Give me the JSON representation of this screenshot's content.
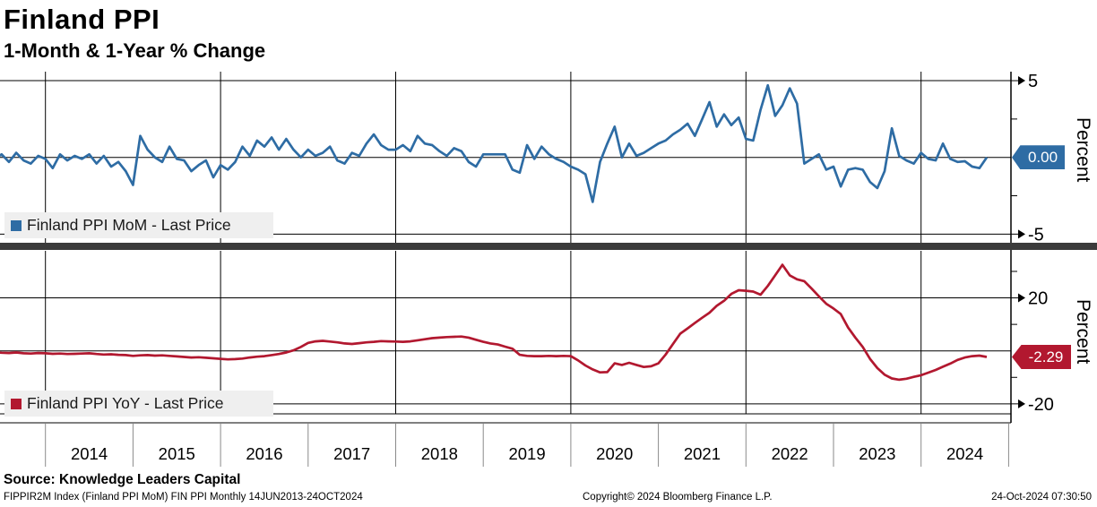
{
  "header": {
    "title": "Finland PPI",
    "subtitle": "1-Month & 1-Year % Change"
  },
  "xaxis": {
    "years": [
      "2014",
      "2015",
      "2016",
      "2017",
      "2018",
      "2019",
      "2020",
      "2021",
      "2022",
      "2023",
      "2024"
    ]
  },
  "chart_data": [
    {
      "type": "line",
      "name": "Finland PPI MoM - Last Price",
      "unit": "Percent",
      "color": "#2e6ca4",
      "last_price": "0.00",
      "last_price_value": 0.0,
      "freq": "monthly",
      "x_start": "2013-06",
      "x_end": "2024-10",
      "ylim": [
        -5.6,
        5.6
      ],
      "gridlines": [
        5,
        0,
        -5
      ],
      "major_ticks": [
        5,
        -5
      ],
      "minor_ticks": [
        2.5,
        -2.5
      ],
      "values": [
        -0.1,
        0.2,
        -0.3,
        0.3,
        -0.2,
        -0.4,
        0.1,
        -0.1,
        -0.7,
        0.2,
        -0.2,
        0.1,
        -0.1,
        0.2,
        -0.4,
        0.1,
        -0.6,
        -0.3,
        -0.9,
        -1.8,
        1.4,
        0.5,
        0,
        -0.3,
        0.7,
        -0.1,
        -0.2,
        -0.9,
        -0.5,
        -0.2,
        -1.3,
        -0.5,
        -0.8,
        -0.3,
        0.7,
        0.1,
        1.1,
        0.7,
        1.3,
        0.5,
        1.2,
        0.5,
        0,
        0.5,
        0.1,
        0.3,
        0.7,
        -0.2,
        -0.4,
        0.3,
        0.1,
        0.9,
        1.5,
        0.8,
        0.5,
        0.5,
        0.8,
        0.4,
        1.4,
        0.9,
        0.8,
        0.4,
        0.1,
        0.6,
        0.4,
        -0.3,
        -0.6,
        0.2,
        0.2,
        0.2,
        0.2,
        -0.8,
        -1,
        0.8,
        -0.1,
        0.7,
        0.2,
        -0.1,
        -0.3,
        -0.6,
        -0.8,
        -1.1,
        -2.9,
        -0.3,
        0.9,
        2,
        0,
        0.9,
        0.1,
        0.3,
        0.6,
        0.9,
        1.1,
        1.5,
        1.8,
        2.2,
        1.4,
        2.5,
        3.6,
        2,
        2.8,
        2.1,
        2.6,
        1.2,
        1.1,
        3.1,
        4.7,
        2.7,
        3.4,
        4.5,
        3.5,
        -0.4,
        -0.1,
        0.2,
        -0.8,
        -0.6,
        -1.9,
        -0.8,
        -0.7,
        -0.8,
        -1.6,
        -2,
        -0.9,
        1.9,
        0.1,
        -0.2,
        -0.4,
        0.3,
        -0.1,
        -0.2,
        0.9,
        -0.1,
        -0.3,
        -0.25,
        -0.6,
        -0.7,
        0
      ]
    },
    {
      "type": "line",
      "name": "Finland PPI YoY - Last Price",
      "unit": "Percent",
      "color": "#b2182f",
      "last_price": "-2.29",
      "last_price_value": -2.29,
      "freq": "monthly",
      "x_start": "2013-06",
      "x_end": "2024-10",
      "ylim": [
        -23.4,
        37.8
      ],
      "gridlines": [
        20,
        0,
        -20
      ],
      "major_ticks": [
        20,
        -20
      ],
      "minor_ticks": [
        30,
        10,
        -10
      ],
      "values": [
        -0.5,
        -0.7,
        -0.8,
        -0.6,
        -0.9,
        -1,
        -0.8,
        -0.9,
        -1.1,
        -1,
        -1.2,
        -1.1,
        -1,
        -0.9,
        -1.2,
        -1.4,
        -1.3,
        -1.5,
        -1.6,
        -1.9,
        -1.7,
        -1.6,
        -1.8,
        -1.7,
        -1.9,
        -2.1,
        -2.3,
        -2.5,
        -2.4,
        -2.6,
        -2.8,
        -3,
        -3.2,
        -3.1,
        -2.9,
        -2.5,
        -2.2,
        -2,
        -1.6,
        -1.2,
        -0.6,
        0.2,
        1.5,
        3,
        3.6,
        3.8,
        3.5,
        3.2,
        2.8,
        2.6,
        2.9,
        3.2,
        3.4,
        3.7,
        3.6,
        3.5,
        3.4,
        3.6,
        4,
        4.4,
        4.8,
        5,
        5.2,
        5.3,
        5.4,
        5,
        4.2,
        3.4,
        2.8,
        2.4,
        1.6,
        0.8,
        -1.5,
        -1.9,
        -2,
        -2,
        -1.9,
        -2,
        -1.9,
        -2,
        -3.6,
        -5.5,
        -7,
        -8.1,
        -8,
        -4.7,
        -5.3,
        -4.5,
        -5.3,
        -6.1,
        -5.8,
        -4.7,
        -1.4,
        2.6,
        6.5,
        8.5,
        10.5,
        12.5,
        14.4,
        17,
        18.9,
        21.5,
        22.9,
        22.7,
        22.4,
        21.2,
        24.5,
        28.5,
        32.5,
        28.5,
        27,
        26.3,
        23.5,
        20.6,
        17.8,
        16,
        13.9,
        8.8,
        5,
        1.5,
        -3,
        -6.5,
        -9,
        -10.4,
        -10.9,
        -10.5,
        -9.8,
        -9.2,
        -8.2,
        -7.2,
        -6,
        -4.8,
        -3.4,
        -2.5,
        -2,
        -1.8,
        -2.29
      ]
    }
  ],
  "footer": {
    "source": "Source: Knowledge Leaders Capital",
    "ticker": "FIPPIR2M Index (Finland PPI MoM) FIN PPI  Monthly 14JUN2013-24OCT2024",
    "copyright": "Copyright© 2024 Bloomberg Finance L.P.",
    "datetime": "24-Oct-2024 07:30:50"
  }
}
